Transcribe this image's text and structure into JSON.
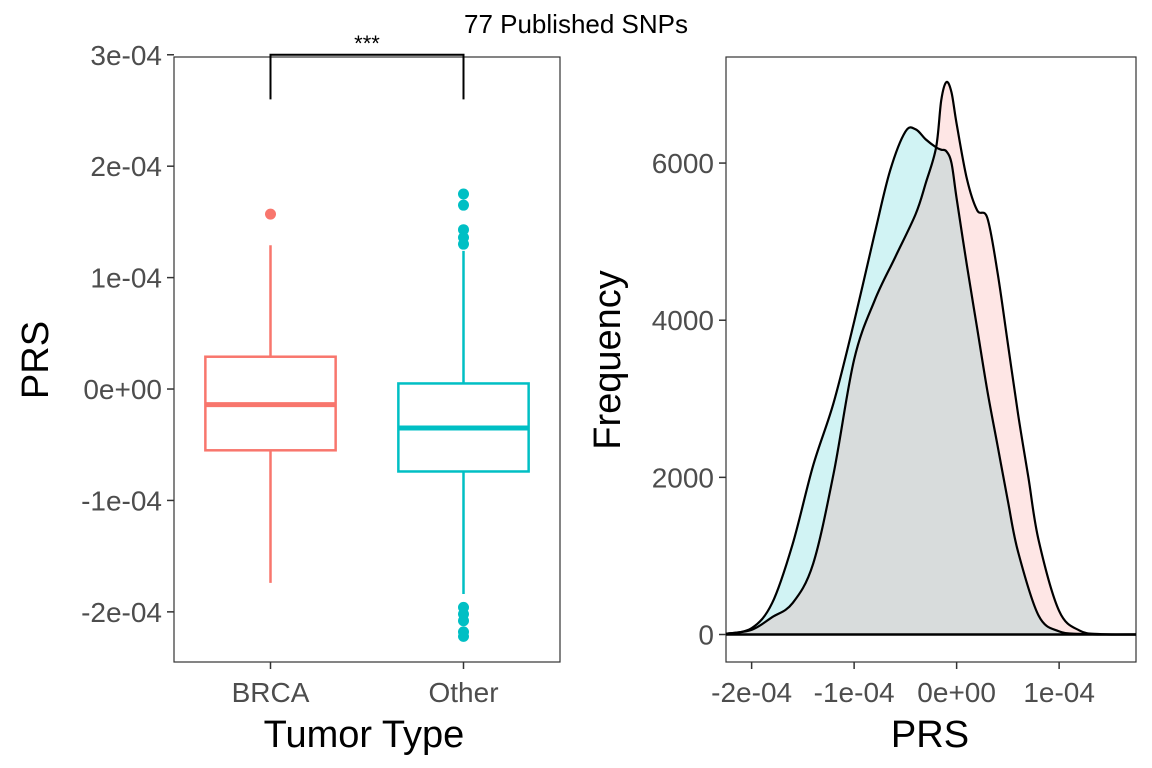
{
  "title": "77 Published SNPs",
  "chart_data": [
    {
      "type": "box",
      "xlabel": "Tumor Type",
      "ylabel": "PRS",
      "categories": [
        "BRCA",
        "Other"
      ],
      "ylim": [
        -0.000245,
        0.000298
      ],
      "yticks": [
        -0.0002,
        -0.0001,
        0,
        0.0001,
        0.0002,
        0.0003
      ],
      "ytick_labels": [
        "-2e-04",
        "-1e-04",
        "0e+00",
        "1e-04",
        "2e-04",
        "3e-04"
      ],
      "grid": false,
      "boxes": [
        {
          "name": "BRCA",
          "color": "#F8766D",
          "min": -0.000174,
          "q1": -5.5e-05,
          "median": -1.4e-05,
          "q3": 2.9e-05,
          "max": 0.000129,
          "outliers": [
            0.000157
          ]
        },
        {
          "name": "Other",
          "color": "#00BFC4",
          "min": -0.000184,
          "q1": -7.4e-05,
          "median": -3.5e-05,
          "q3": 5e-06,
          "max": 0.000124,
          "outliers": [
            0.000175,
            0.000165,
            0.000143,
            0.000136,
            0.00013,
            -0.000196,
            -0.000202,
            -0.000208,
            -0.000218,
            -0.000222
          ]
        }
      ],
      "annotation": {
        "text": "***",
        "top": 0.0003,
        "left_end": 0.00026,
        "right_end": 0.00026
      }
    },
    {
      "type": "area",
      "xlabel": "PRS",
      "ylabel": "Frequency",
      "xlim": [
        -0.000225,
        0.000175
      ],
      "ylim": [
        -350,
        7350
      ],
      "xticks": [
        -0.0002,
        -0.0001,
        0,
        0.0001
      ],
      "xtick_labels": [
        "-2e-04",
        "-1e-04",
        "0e+00",
        "1e-04"
      ],
      "yticks": [
        0,
        2000,
        4000,
        6000
      ],
      "ytick_labels": [
        "0",
        "2000",
        "4000",
        "6000"
      ],
      "grid": false,
      "series": [
        {
          "color": "#00BFC4",
          "x": [
            -0.000225,
            -0.0002,
            -0.00018,
            -0.00016,
            -0.00014,
            -0.00012,
            -0.0001,
            -8e-05,
            -6.5e-05,
            -5e-05,
            -4e-05,
            -3e-05,
            -2e-05,
            -1.5e-05,
            -1e-05,
            -5e-06,
            0.0,
            1e-05,
            2e-05,
            3e-05,
            4e-05,
            5e-05,
            6e-05,
            8e-05,
            0.0001,
            0.00012,
            0.00014,
            0.000175
          ],
          "y": [
            10,
            80,
            400,
            1150,
            2150,
            2950,
            3980,
            5100,
            5900,
            6400,
            6430,
            6300,
            6200,
            6170,
            6150,
            6000,
            5550,
            4700,
            3900,
            3100,
            2400,
            1700,
            1050,
            240,
            40,
            8,
            0,
            0
          ]
        },
        {
          "color": "#F8766D",
          "x": [
            -0.000225,
            -0.0002,
            -0.00018,
            -0.00016,
            -0.00014,
            -0.00012,
            -0.0001,
            -8e-05,
            -6e-05,
            -4e-05,
            -3e-05,
            -2e-05,
            -1.5e-05,
            -1e-05,
            -5e-06,
            0.0,
            1e-05,
            2e-05,
            3e-05,
            4e-05,
            5e-05,
            6e-05,
            7e-05,
            8e-05,
            0.0001,
            0.00012,
            0.00014,
            0.000175
          ],
          "y": [
            10,
            60,
            220,
            400,
            900,
            2050,
            3500,
            4250,
            4800,
            5350,
            5750,
            6200,
            6800,
            7030,
            6900,
            6500,
            5800,
            5400,
            5300,
            4600,
            3700,
            2800,
            2000,
            1200,
            300,
            50,
            5,
            0
          ]
        }
      ]
    }
  ]
}
